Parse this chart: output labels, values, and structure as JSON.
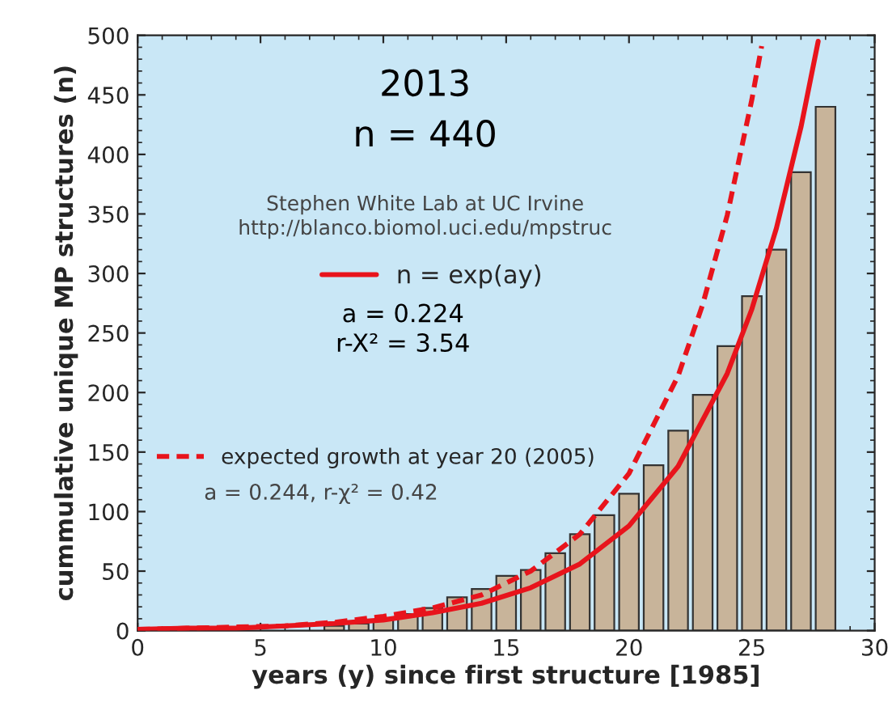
{
  "chart_data": {
    "type": "bar",
    "xlabel": "years (y) since first structure [1985]",
    "ylabel": "cummulative unique MP structures (n)",
    "x": [
      1,
      2,
      3,
      4,
      5,
      6,
      7,
      8,
      9,
      10,
      11,
      12,
      13,
      14,
      15,
      16,
      17,
      18,
      19,
      20,
      21,
      22,
      23,
      24,
      25,
      26,
      27,
      28
    ],
    "series": [
      {
        "color": "#c8b49a",
        "values": [
          1,
          1,
          1,
          1,
          null,
          null,
          null,
          4,
          6,
          9,
          14,
          19,
          28,
          35,
          46,
          51,
          65,
          81,
          97,
          115,
          139,
          168,
          198,
          239,
          281,
          320,
          385,
          440
        ]
      },
      {
        "type": "line",
        "name": "n = exp(ay)",
        "color": "#e8141c",
        "line_style": "solid",
        "x": [
          0,
          2,
          4,
          6,
          8,
          10,
          12,
          14,
          16,
          18,
          20,
          22,
          24,
          25,
          26,
          27,
          27.7
        ],
        "values": [
          1,
          2,
          2,
          4,
          6,
          9,
          15,
          23,
          36,
          56,
          88,
          138,
          216,
          270,
          338,
          423,
          495
        ]
      },
      {
        "type": "line",
        "name": "expected growth at year 20 (2005)",
        "color": "#e8141c",
        "line_style": "dashed",
        "x": [
          0,
          2,
          4,
          6,
          8,
          10,
          12,
          14,
          16,
          18,
          20,
          22,
          23,
          24,
          25,
          25.4
        ],
        "values": [
          1,
          2,
          3,
          4,
          7,
          12,
          19,
          30,
          50,
          81,
          132,
          214,
          274,
          349,
          446,
          491
        ]
      }
    ],
    "annotations": [
      "2013",
      "n = 440",
      "Stephen White Lab at UC Irvine\nhttp://blanco.biomol.uci.edu/mpstruc",
      "a = 0.224\nr-X² = 3.54",
      "a = 0.244, r-χ² = 0.42"
    ],
    "xlim": [
      0,
      30
    ],
    "ylim": [
      0,
      500
    ],
    "xticks": [
      0,
      5,
      10,
      15,
      20,
      25,
      30
    ],
    "yticks": [
      0,
      50,
      100,
      150,
      200,
      250,
      300,
      350,
      400,
      450,
      500
    ],
    "grid": false,
    "legend": "left",
    "marker": "none"
  }
}
